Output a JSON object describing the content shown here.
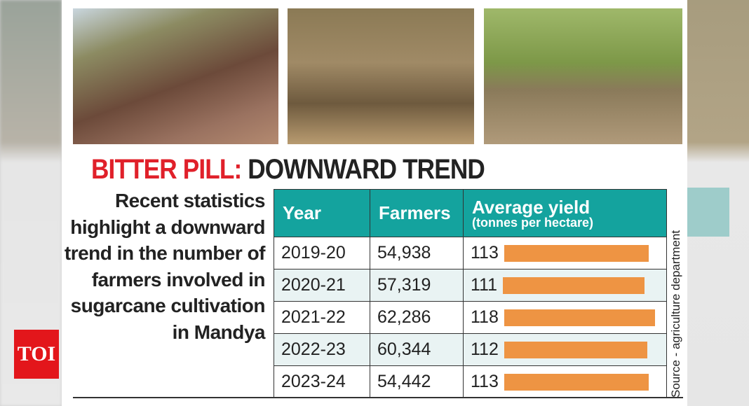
{
  "logo": "TOI",
  "title": {
    "highlight": "BITTER PILL:",
    "rest": "DOWNWARD TREND"
  },
  "description": "Recent statistics highlight a downward trend in the number of farmers involved in sugarcane cultivation in Mandya",
  "source": "Source - agriculture department",
  "colors": {
    "header": "#14a39e",
    "bar": "#ee9443",
    "title_red": "#e0202a"
  },
  "chart_data": {
    "type": "table",
    "columns": [
      "Year",
      "Farmers",
      "Average yield",
      "(tonnes per hectare)"
    ],
    "rows": [
      {
        "year": "2019-20",
        "farmers": "54,938",
        "yield": 113
      },
      {
        "year": "2020-21",
        "farmers": "57,319",
        "yield": 111
      },
      {
        "year": "2021-22",
        "farmers": "62,286",
        "yield": 118
      },
      {
        "year": "2022-23",
        "farmers": "60,344",
        "yield": 112
      },
      {
        "year": "2023-24",
        "farmers": "54,442",
        "yield": 113
      }
    ]
  }
}
